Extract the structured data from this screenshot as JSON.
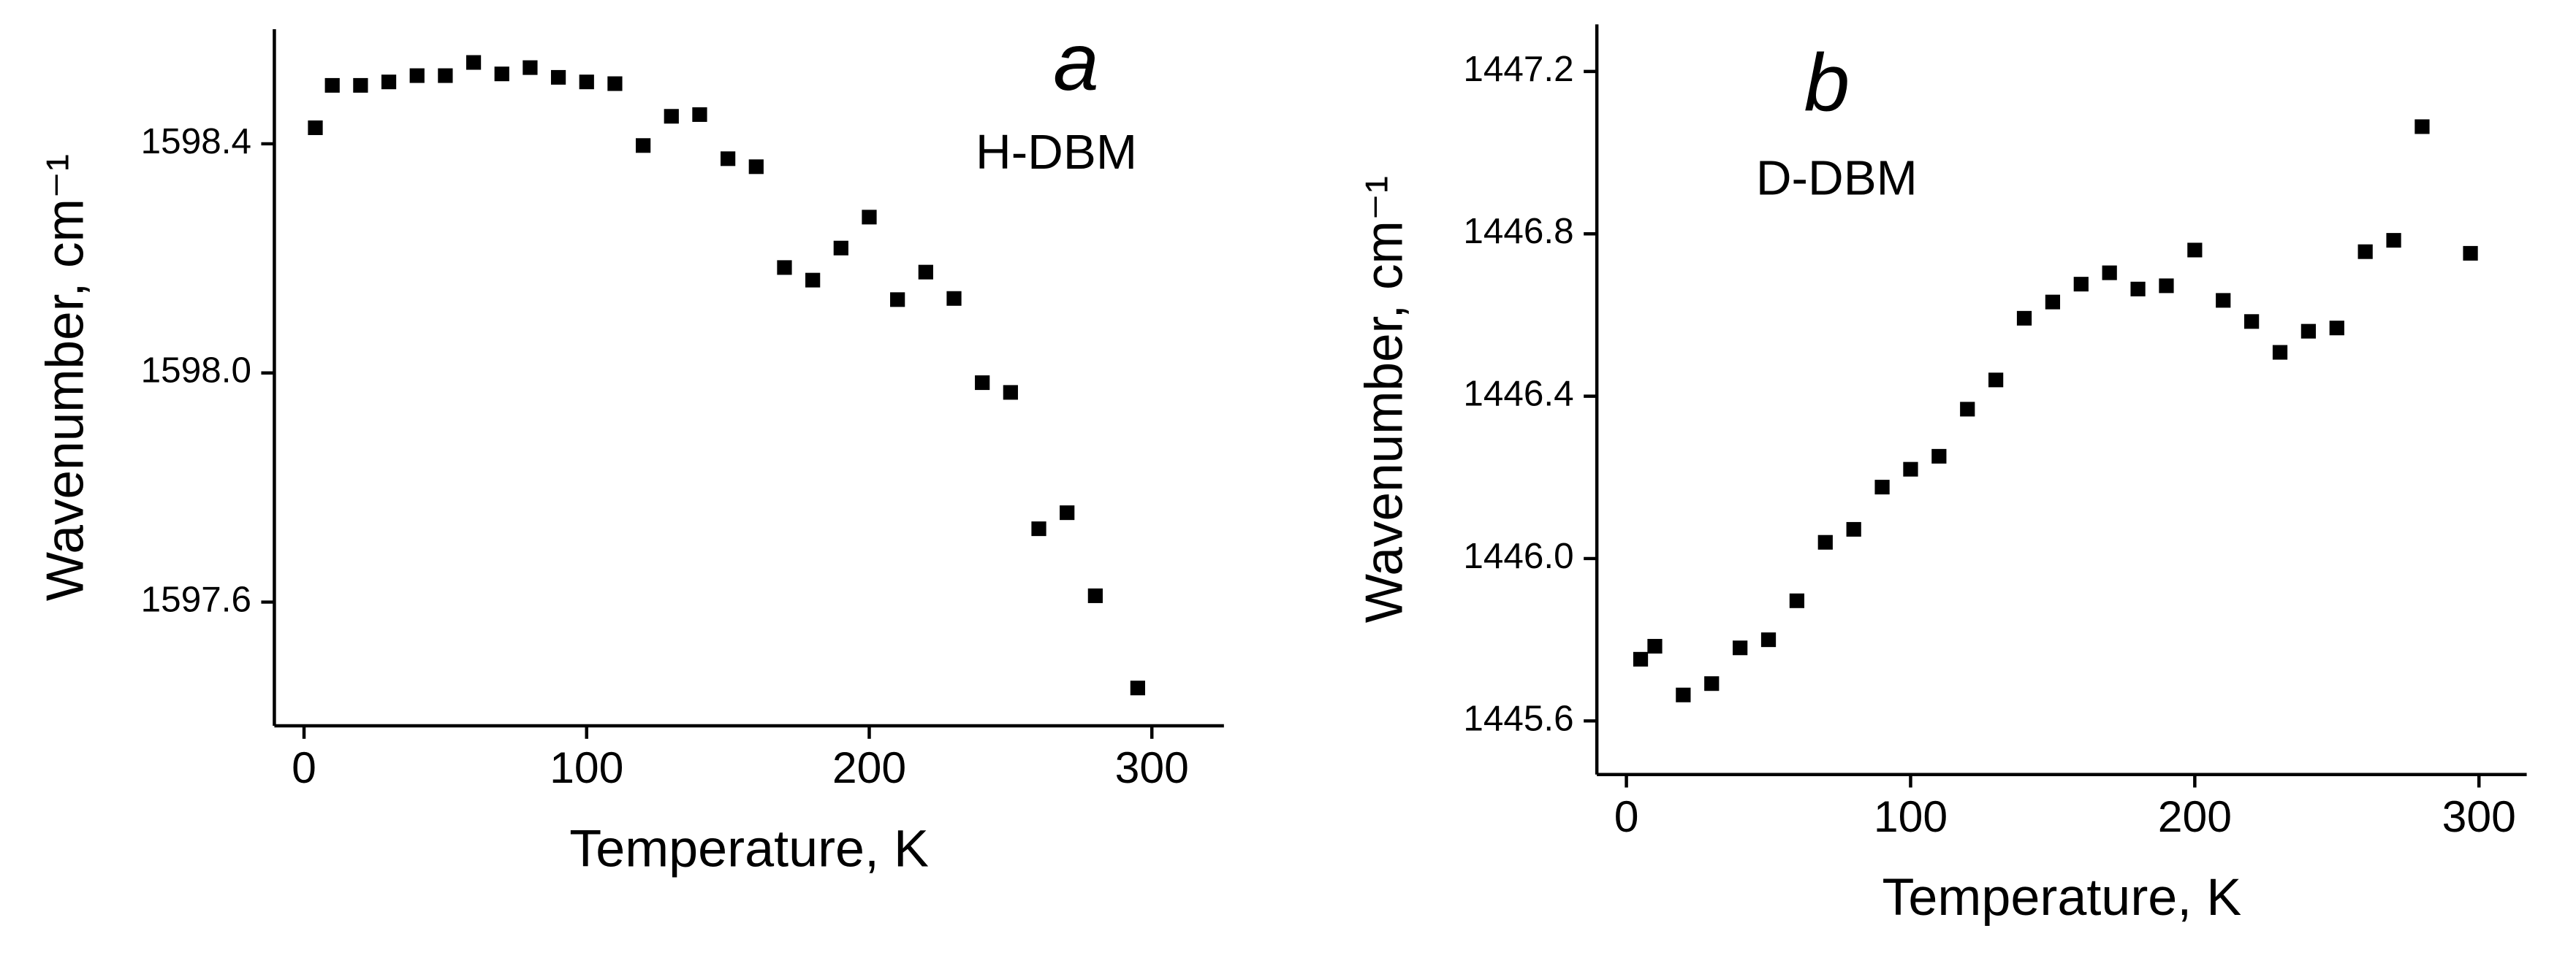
{
  "chart_data": [
    {
      "type": "scatter",
      "panel_label": "a",
      "annotation": "H-DBM",
      "xlabel": "Temperature, K",
      "ylabel": "Wavenumber, cm⁻¹",
      "x": [
        4,
        10,
        20,
        30,
        40,
        50,
        60,
        70,
        80,
        90,
        100,
        110,
        120,
        130,
        140,
        150,
        160,
        170,
        180,
        190,
        200,
        210,
        220,
        230,
        240,
        250,
        260,
        270,
        280,
        295
      ],
      "series": [
        {
          "color": "#000000",
          "values": [
            1598.428,
            1598.502,
            1598.502,
            1598.508,
            1598.519,
            1598.519,
            1598.542,
            1598.522,
            1598.533,
            1598.516,
            1598.508,
            1598.505,
            1598.397,
            1598.448,
            1598.451,
            1598.374,
            1598.36,
            1598.184,
            1598.162,
            1598.218,
            1598.272,
            1598.128,
            1598.176,
            1598.13,
            1597.983,
            1597.966,
            1597.728,
            1597.756,
            1597.611,
            1597.45
          ]
        }
      ],
      "xlim": [
        -10.5,
        325.5
      ],
      "xticks": [
        0,
        100,
        200,
        300
      ],
      "ylim": [
        1597.384,
        1598.6
      ],
      "yticks": [
        1597.6,
        {
          "value": 1598,
          "label": "1598.0"
        },
        1598.4
      ]
    },
    {
      "type": "scatter",
      "panel_label": "b",
      "annotation": "D-DBM",
      "xlabel": "Temperature, K",
      "ylabel": "Wavenumber, cm⁻¹",
      "x": [
        5,
        10,
        20,
        30,
        40,
        50,
        60,
        70,
        80,
        90,
        100,
        110,
        120,
        130,
        140,
        150,
        160,
        170,
        180,
        190,
        200,
        210,
        220,
        230,
        240,
        250,
        260,
        270,
        280,
        297
      ],
      "series": [
        {
          "color": "#000000",
          "values": [
            1445.752,
            1445.784,
            1445.664,
            1445.692,
            1445.78,
            1445.8,
            1445.896,
            1446.04,
            1446.072,
            1446.176,
            1446.22,
            1446.252,
            1446.368,
            1446.44,
            1446.592,
            1446.632,
            1446.676,
            1446.704,
            1446.664,
            1446.672,
            1446.76,
            1446.636,
            1446.584,
            1446.508,
            1446.56,
            1446.568,
            1446.756,
            1446.784,
            1447.064,
            1446.752
          ]
        }
      ],
      "xlim": [
        -10.4,
        316.8
      ],
      "xticks": [
        0,
        100,
        200,
        300
      ],
      "ylim": [
        1445.468,
        1447.316
      ],
      "yticks": [
        1445.6,
        {
          "value": 1446,
          "label": "1446.0"
        },
        1446.4,
        1446.8,
        1447.2
      ]
    }
  ]
}
